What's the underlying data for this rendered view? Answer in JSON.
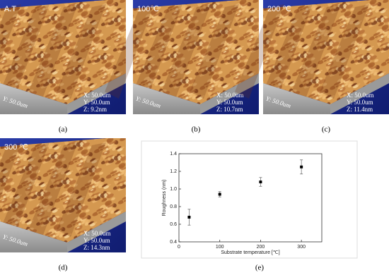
{
  "panels": [
    {
      "label": "(a)",
      "title": "A.T",
      "x_text": "X: 50.0um",
      "y_text": "Y: 50.0um",
      "z_text": "Z: 9.2nm",
      "axis_text": "Y: 50.0um"
    },
    {
      "label": "(b)",
      "title": "100℃",
      "x_text": "X: 50.0um",
      "y_text": "Y: 50.0um",
      "z_text": "Z: 10.7nm",
      "axis_text": "Y: 50.0um"
    },
    {
      "label": "(c)",
      "title": "200 ℃",
      "x_text": "X: 50.0um",
      "y_text": "Y: 50.0um",
      "z_text": "Z: 11.4nm",
      "axis_text": "Y: 50.0um"
    },
    {
      "label": "(d)",
      "title": "300 ℃",
      "x_text": "X: 50.0um",
      "y_text": "Y: 50.0um",
      "z_text": "Z: 14.3nm",
      "axis_text": "Y: 50.0um"
    }
  ],
  "chart_data": {
    "type": "scatter",
    "label": "(e)",
    "x_label": "Substrate temperature [℃]",
    "y_label": "Roughness (nm)",
    "x": [
      25,
      100,
      200,
      300
    ],
    "values": [
      0.68,
      0.94,
      1.08,
      1.25
    ],
    "errors": [
      0.09,
      0.03,
      0.05,
      0.08
    ],
    "color": "#000000",
    "xlim": [
      0,
      350
    ],
    "xticks": [
      0,
      100,
      200,
      300
    ],
    "ylim": [
      0.4,
      1.4
    ],
    "yticks": [
      0.4,
      0.6,
      0.8,
      {
        "value": 1,
        "label": "1.0"
      },
      1.2,
      1.4
    ]
  }
}
